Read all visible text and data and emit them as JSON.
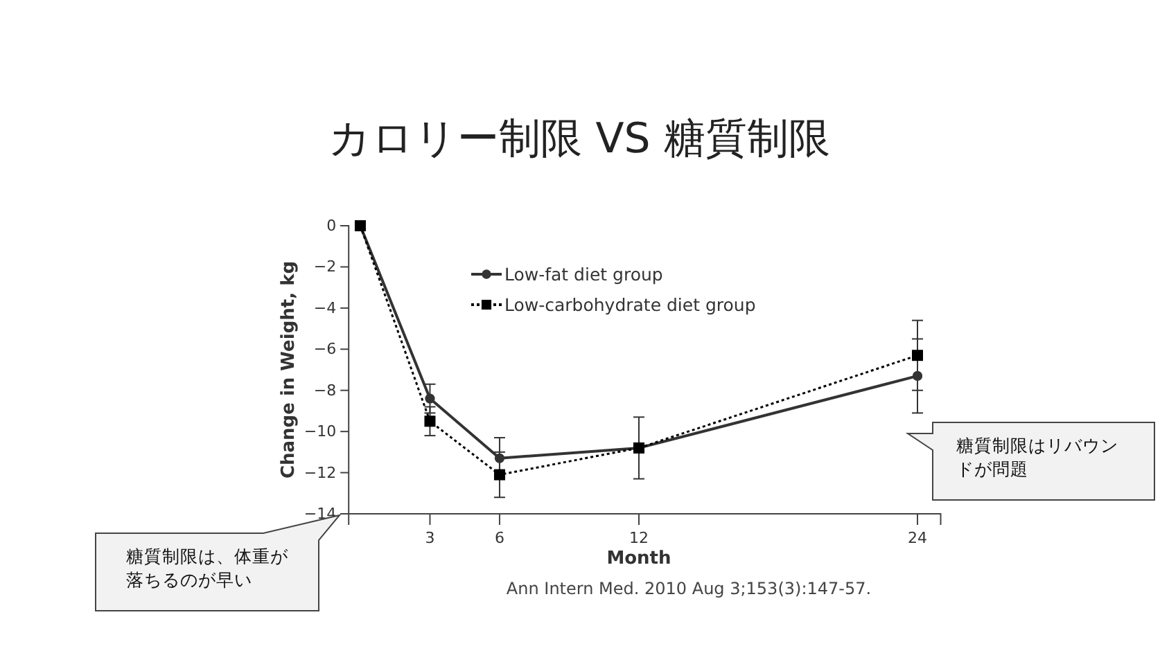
{
  "chart_data": {
    "type": "line",
    "title": "カロリー制限 VS 糖質制限",
    "xlabel": "Month",
    "ylabel": "Change in Weight, kg",
    "x": [
      0,
      3,
      6,
      12,
      24
    ],
    "xlim": [
      -0.5,
      25
    ],
    "xticks": [
      3,
      6,
      12,
      24
    ],
    "ylim": [
      -14,
      0
    ],
    "yticks": [
      {
        "value": 0,
        "label": "0"
      },
      {
        "value": -2,
        "label": "−2"
      },
      {
        "value": -4,
        "label": "−4"
      },
      {
        "value": -6,
        "label": "−6"
      },
      {
        "value": -8,
        "label": "−8"
      },
      {
        "value": -10,
        "label": "−10"
      },
      {
        "value": -12,
        "label": "−12"
      },
      {
        "value": -14,
        "label": "−14"
      }
    ],
    "series": [
      {
        "name": "Low-fat diet group",
        "color": "#333333",
        "marker": "circle",
        "line_style": "solid",
        "values": [
          0,
          -8.4,
          -11.3,
          -10.8,
          -7.3
        ],
        "errors": [
          null,
          0.7,
          1.0,
          1.5,
          1.8
        ]
      },
      {
        "name": "Low-carbohydrate diet group",
        "color": "#000000",
        "marker": "square",
        "line_style": "dotted",
        "values": [
          0,
          -9.5,
          -12.1,
          -10.8,
          -6.3
        ],
        "errors": [
          null,
          0.7,
          1.1,
          null,
          1.7
        ]
      }
    ],
    "legend": "top",
    "grid": false,
    "annotations": [
      "糖質制限は、体重が落ちるのが早い",
      "糖質制限はリバウンドが問題",
      "Ann Intern Med. 2010 Aug 3;153(3):147-57."
    ]
  }
}
